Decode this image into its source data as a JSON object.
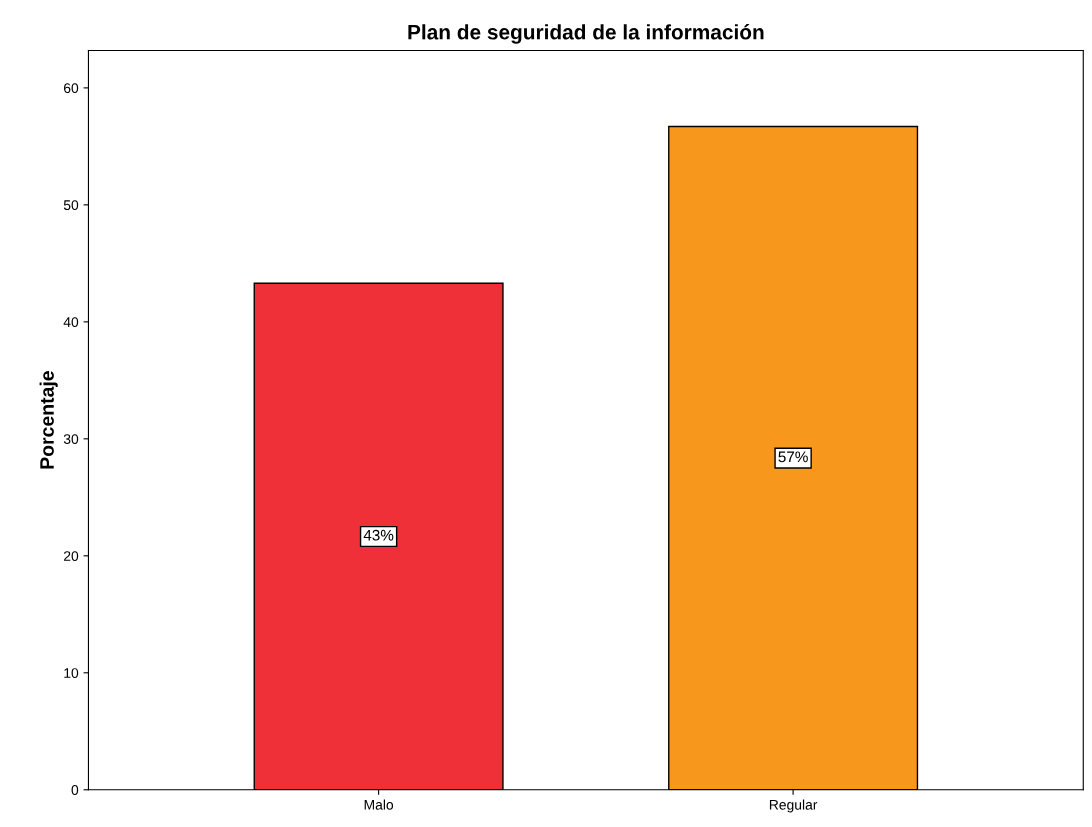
{
  "chart_data": {
    "type": "bar",
    "title": "Plan de seguridad de la información",
    "ylabel": "Porcentaje",
    "categories": [
      "Malo",
      "Regular"
    ],
    "values": [
      43.3,
      56.7
    ],
    "colors": [
      "#ef3038",
      "#f7981d"
    ],
    "value_labels": [
      "43%",
      "57%"
    ],
    "ylim": [
      0,
      63.2
    ],
    "yticks": [
      0,
      10,
      20,
      30,
      40,
      50,
      60
    ],
    "grid": false,
    "legend": false
  }
}
